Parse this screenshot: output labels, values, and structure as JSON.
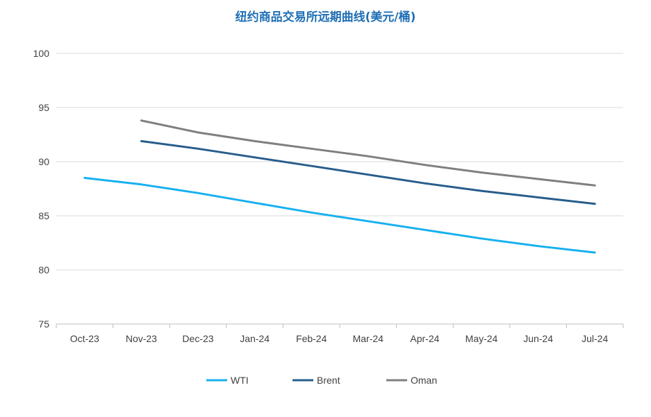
{
  "chart_data": {
    "type": "line",
    "title": "纽约商品交易所远期曲线(美元/桶)",
    "categories": [
      "Oct-23",
      "Nov-23",
      "Dec-23",
      "Jan-24",
      "Feb-24",
      "Mar-24",
      "Apr-24",
      "May-24",
      "Jun-24",
      "Jul-24"
    ],
    "ylim": [
      75,
      100
    ],
    "yticks": [
      75,
      80,
      85,
      90,
      95,
      100
    ],
    "grid": true,
    "legend_position": "bottom",
    "series": [
      {
        "name": "WTI",
        "color": "#16b0ef",
        "values": [
          88.5,
          87.9,
          87.1,
          86.2,
          85.3,
          84.5,
          83.7,
          82.9,
          82.2,
          81.6
        ]
      },
      {
        "name": "Brent",
        "color": "#275d8c",
        "values": [
          null,
          91.9,
          91.2,
          90.4,
          89.6,
          88.8,
          88.0,
          87.3,
          86.7,
          86.1
        ]
      },
      {
        "name": "Oman",
        "color": "#7f7f7f",
        "values": [
          null,
          93.8,
          92.7,
          91.9,
          91.2,
          90.5,
          89.7,
          89.0,
          88.4,
          87.8
        ]
      }
    ]
  }
}
